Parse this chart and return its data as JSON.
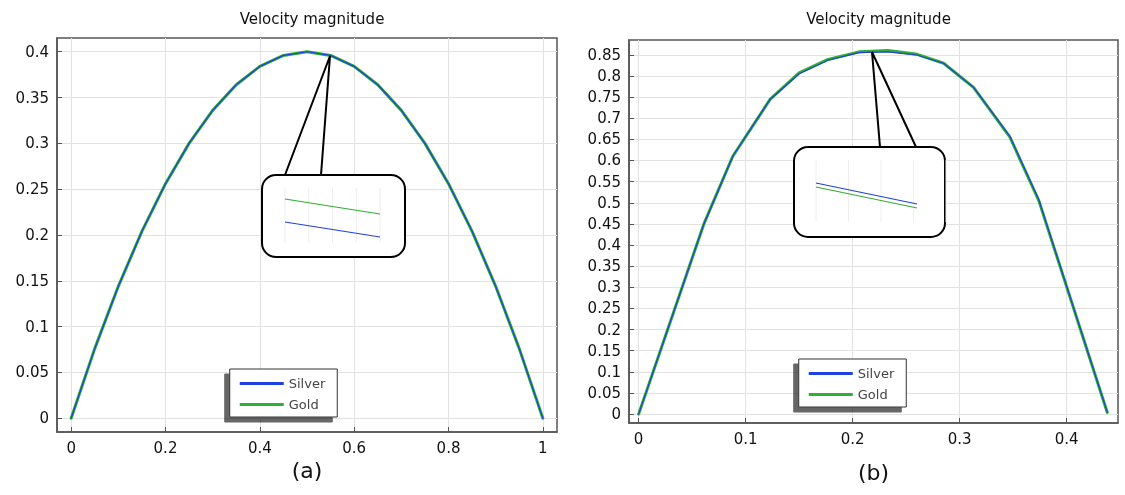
{
  "chart_data": [
    {
      "type": "line",
      "title": "Velocity magnitude",
      "xlabel": "(a)",
      "x": [
        0,
        0.05,
        0.1,
        0.15,
        0.2,
        0.25,
        0.3,
        0.35,
        0.4,
        0.45,
        0.5,
        0.55,
        0.6,
        0.65,
        0.7,
        0.75,
        0.8,
        0.85,
        0.9,
        0.95,
        1
      ],
      "series": [
        {
          "name": "Silver",
          "color": "#2040e0",
          "values": [
            0,
            0.076,
            0.144,
            0.204,
            0.256,
            0.3,
            0.336,
            0.364,
            0.384,
            0.396,
            0.4,
            0.396,
            0.384,
            0.364,
            0.336,
            0.3,
            0.256,
            0.204,
            0.144,
            0.076,
            0
          ]
        },
        {
          "name": "Gold",
          "color": "#30b030",
          "values": [
            0,
            0.076,
            0.144,
            0.204,
            0.256,
            0.3,
            0.336,
            0.364,
            0.384,
            0.396,
            0.4,
            0.396,
            0.384,
            0.364,
            0.336,
            0.3,
            0.256,
            0.204,
            0.144,
            0.076,
            0
          ]
        }
      ],
      "xlim": [
        -0.03,
        1.03
      ],
      "xticks": [
        0,
        0.2,
        0.4,
        0.6,
        0.8,
        1
      ],
      "ylim": [
        -0.015,
        0.415
      ],
      "yticks": [
        0,
        0.05,
        0.1,
        0.15,
        0.2,
        0.25,
        0.3,
        0.35,
        0.4
      ],
      "grid": true,
      "legend": "bottom",
      "marker": "none",
      "line_style": "solid"
    },
    {
      "type": "line",
      "title": "Velocity magnitude",
      "xlabel": "(b)",
      "x": [
        0,
        0.061,
        0.088,
        0.123,
        0.15,
        0.177,
        0.206,
        0.233,
        0.259,
        0.285,
        0.313,
        0.347,
        0.374,
        0.438
      ],
      "series": [
        {
          "name": "Silver",
          "color": "#2040e0",
          "values": [
            0,
            0.45,
            0.61,
            0.745,
            0.805,
            0.837,
            0.855,
            0.857,
            0.85,
            0.83,
            0.773,
            0.657,
            0.507,
            0.004
          ]
        },
        {
          "name": "Gold",
          "color": "#30b030",
          "values": [
            0,
            0.45,
            0.61,
            0.745,
            0.807,
            0.839,
            0.857,
            0.86,
            0.852,
            0.83,
            0.773,
            0.655,
            0.505,
            0.004
          ]
        }
      ],
      "xlim": [
        -0.009,
        0.448
      ],
      "xticks": [
        0,
        0.1,
        0.2,
        0.3,
        0.4
      ],
      "ylim": [
        -0.021,
        0.885
      ],
      "yticks": [
        0,
        0.05,
        0.1,
        0.15,
        0.2,
        0.25,
        0.3,
        0.35,
        0.4,
        0.45,
        0.5,
        0.55,
        0.6,
        0.65,
        0.7,
        0.75,
        0.8,
        0.85
      ],
      "grid": true,
      "legend": "bottom",
      "marker": "none",
      "line_style": "solid"
    }
  ]
}
